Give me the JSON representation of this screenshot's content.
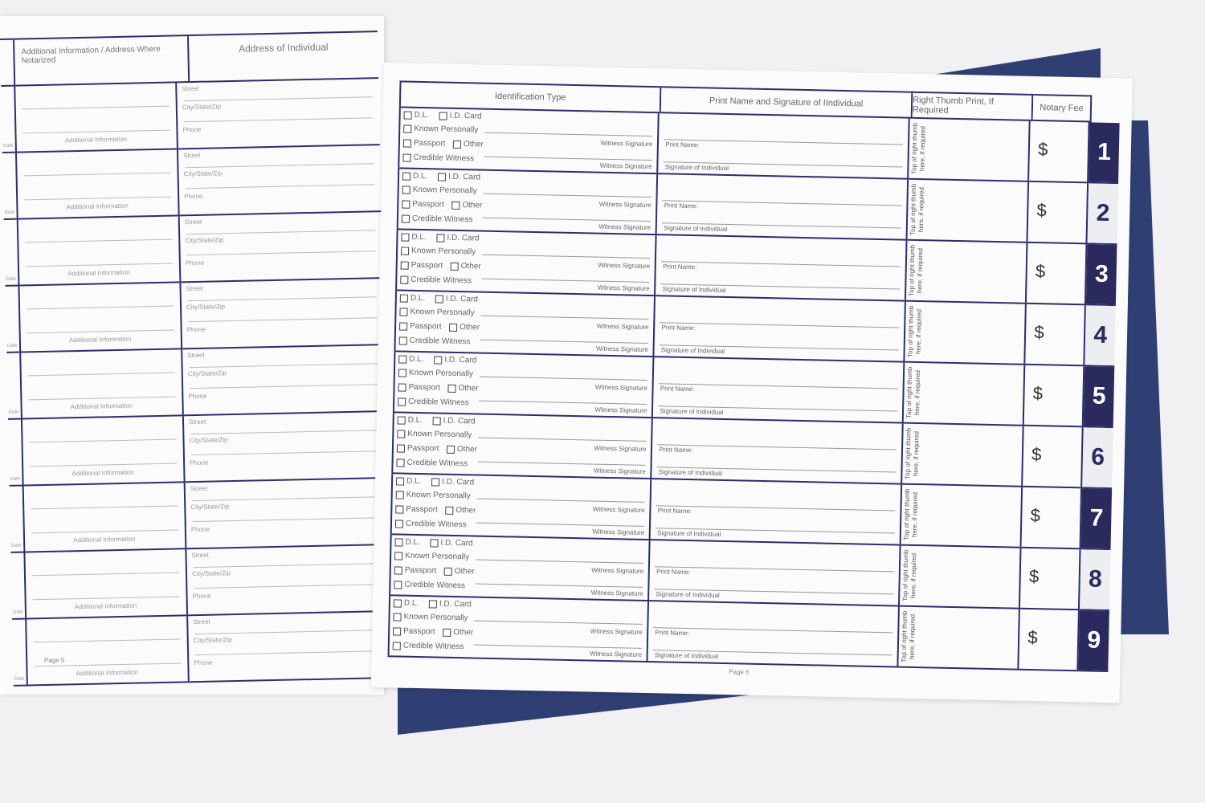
{
  "left_page": {
    "header_additional": "Additional Information / Address Where Notarized",
    "header_address": "Address of Individual",
    "additional_label": "Additional Information",
    "street_label": "Street",
    "city_label": "City/State/Zip",
    "phone_label": "Phone",
    "date_label": "Date",
    "page_number": "Page 5",
    "row_count": 9
  },
  "right_page": {
    "headers": {
      "identification": "Identification Type",
      "print_name": "Print Name and Signature of IIndividual",
      "thumb": "Right Thumb Print, If Required",
      "fee": "Notary Fee"
    },
    "id_options": {
      "dl": "D.L.",
      "id_card": "I.D. Card",
      "known": "Known Personally",
      "passport": "Passport",
      "other": "Other",
      "credible": "Credible Witness"
    },
    "witness_signature": "Witness Signature",
    "print_name_label": "Print Name:",
    "signature_label": "Signature of Individual",
    "thumb_note": "Top of right thumb here, if required",
    "currency": "$",
    "entries": [
      "1",
      "2",
      "3",
      "4",
      "5",
      "6",
      "7",
      "8",
      "9"
    ],
    "page_number": "Page 6"
  },
  "colors": {
    "ink": "#2b2f6b",
    "tab_dark": "#2b2a5e",
    "cover": "#2f3f73"
  }
}
